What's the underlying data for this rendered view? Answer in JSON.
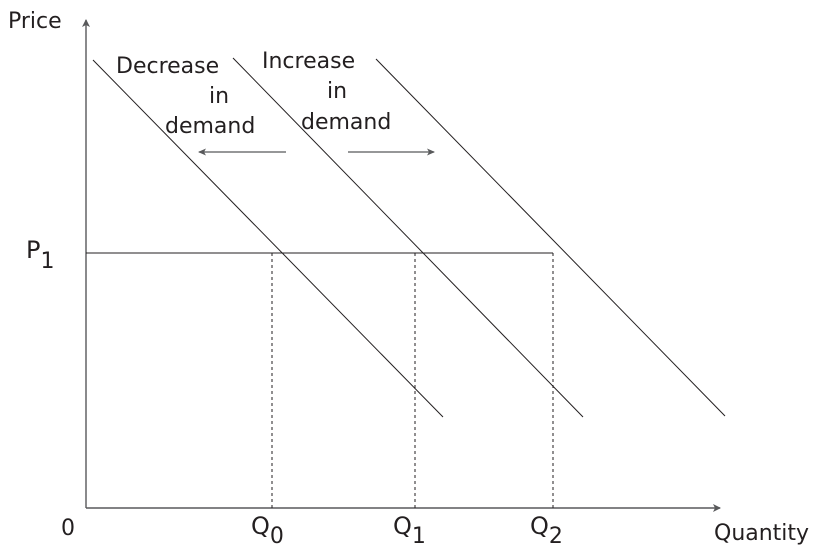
{
  "axes": {
    "y_label": "Price",
    "x_label": "Quantity",
    "origin_label": "0"
  },
  "price_level": {
    "base": "P",
    "sub": "1"
  },
  "quantities": [
    {
      "base": "Q",
      "sub": "0"
    },
    {
      "base": "Q",
      "sub": "1"
    },
    {
      "base": "Q",
      "sub": "2"
    }
  ],
  "shifts": {
    "decrease": {
      "line1": "Decrease",
      "line2": "in",
      "line3": "demand",
      "direction": "left"
    },
    "increase": {
      "line1": "Increase",
      "line2": "in",
      "line3": "demand",
      "direction": "right"
    }
  },
  "colors": {
    "line": "#231f20",
    "arrow": "#58595b"
  }
}
